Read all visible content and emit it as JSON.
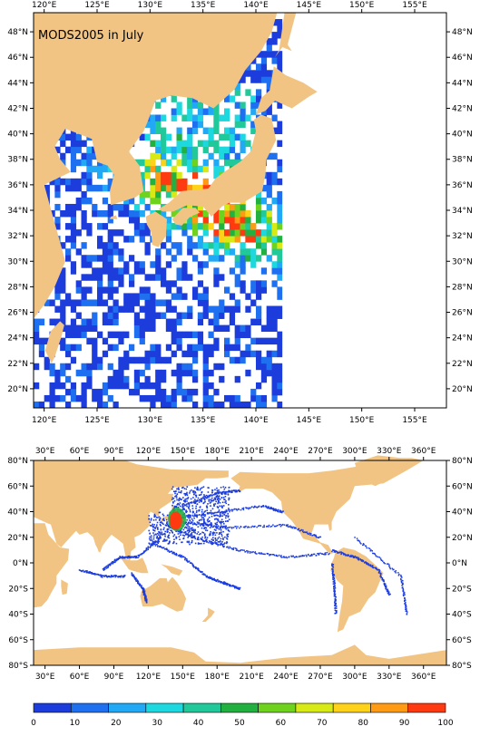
{
  "top_map": {
    "title": "MODS2005 in July",
    "lon_labels": [
      "120°E",
      "125°E",
      "130°E",
      "135°E",
      "140°E",
      "145°E",
      "150°E",
      "155°E"
    ],
    "lat_labels": [
      "20°N",
      "22°N",
      "24°N",
      "26°N",
      "28°N",
      "30°N",
      "32°N",
      "34°N",
      "36°N",
      "38°N",
      "40°N",
      "42°N",
      "44°N",
      "46°N",
      "48°N"
    ],
    "lon_range": [
      119,
      158
    ],
    "lat_range": [
      18.5,
      49.5
    ]
  },
  "bottom_map": {
    "lon_labels": [
      "30°E",
      "60°E",
      "90°E",
      "120°E",
      "150°E",
      "180°E",
      "210°E",
      "240°E",
      "270°E",
      "300°E",
      "330°E",
      "360°E"
    ],
    "lat_labels": [
      "80°S",
      "60°S",
      "40°S",
      "20°S",
      "0°N",
      "20°N",
      "40°N",
      "60°N",
      "80°N"
    ],
    "lon_range": [
      20,
      380
    ],
    "lat_range": [
      -80,
      80
    ]
  },
  "colorbar": {
    "labels": [
      "0",
      "10",
      "20",
      "30",
      "40",
      "50",
      "60",
      "70",
      "80",
      "90",
      "100"
    ],
    "colors": [
      "#1c3ddc",
      "#1f70f0",
      "#21a9f5",
      "#1ed8e0",
      "#20c89a",
      "#22b040",
      "#6fd21c",
      "#d7ea16",
      "#ffd21a",
      "#ff9a14",
      "#ff3a10"
    ]
  },
  "colors": {
    "land": "#f2c483",
    "ocean": "#ffffff",
    "data_low": "#1c3ddc"
  }
}
